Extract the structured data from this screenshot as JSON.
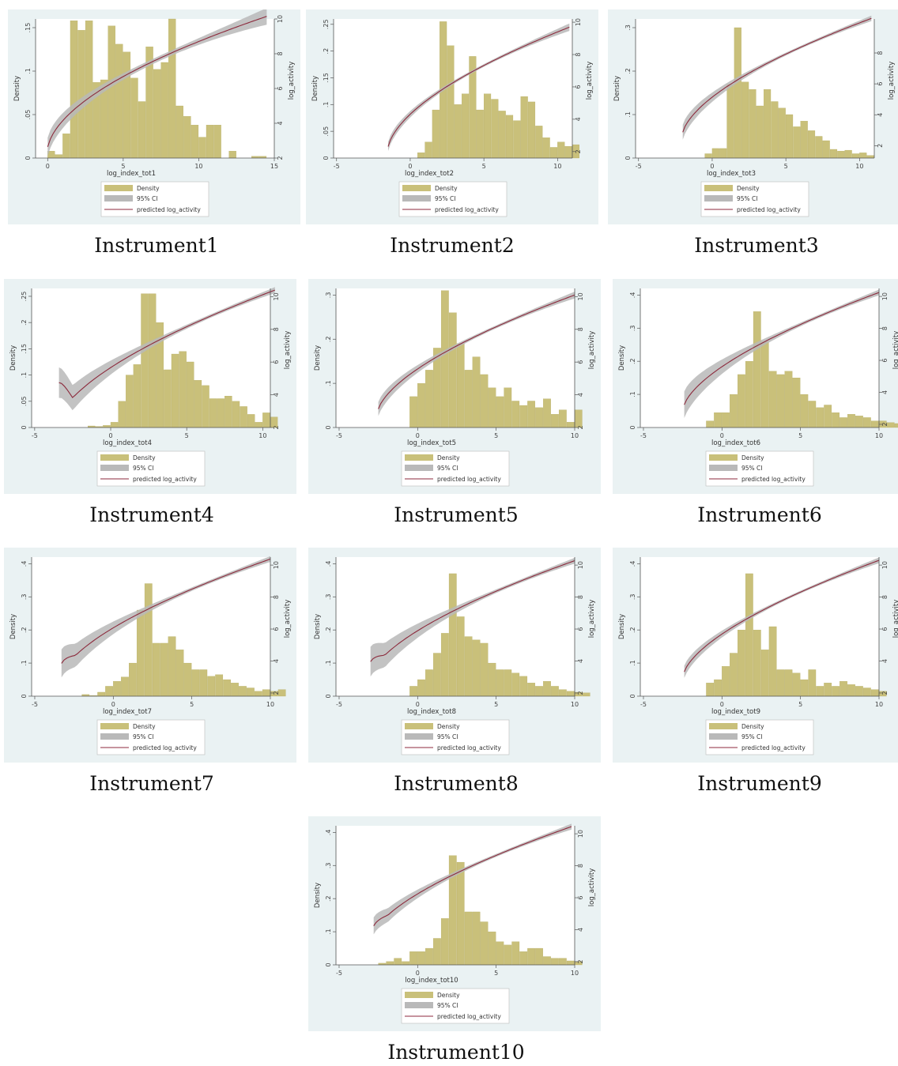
{
  "colors": {
    "bar": "#c9c07a",
    "bar_edge": "#b1a85c",
    "ci": "#b9b9b9",
    "line": "#8c2a3c",
    "panel_bg": "#eaf2f3",
    "plot_bg": "#ffffff"
  },
  "legend": {
    "density": "Density",
    "ci": "95% CI",
    "fit": "predicted log_activity"
  },
  "y2label": "log_activity",
  "ylabel": "Density",
  "chart_data": [
    {
      "type": "bar",
      "caption": "Instrument1",
      "xlabel": "log_index_tot1",
      "xlim": [
        -0.8,
        15
      ],
      "xticks": [
        0,
        5,
        10,
        15
      ],
      "xtick_labels": [
        "0",
        "5",
        "10",
        "15"
      ],
      "ylim": [
        0,
        0.16
      ],
      "yticks": [
        0,
        0.05,
        0.1,
        0.15
      ],
      "ytick_labels": [
        "0",
        ".05",
        ".1",
        ".15"
      ],
      "y2lim": [
        2,
        10
      ],
      "y2ticks": [
        2,
        4,
        6,
        8,
        10
      ],
      "y2tick_labels": [
        "2",
        "4",
        "6",
        "8",
        "10"
      ],
      "bin_start": 0,
      "bin_width": 0.5,
      "values": [
        0.008,
        0.004,
        0.028,
        0.158,
        0.147,
        0.158,
        0.087,
        0.09,
        0.152,
        0.131,
        0.122,
        0.092,
        0.065,
        0.128,
        0.102,
        0.11,
        0.16,
        0.06,
        0.048,
        0.038,
        0.024,
        0.038,
        0.038,
        0,
        0.008,
        0,
        0,
        0.002,
        0.002,
        0
      ],
      "fit": {
        "x0": 0,
        "x1": 14.5,
        "a": 2.3,
        "b": 1.8,
        "p": 0.55
      },
      "ci_start": [
        0,
        1.0
      ],
      "ci_end": [
        14.5,
        0.9
      ]
    },
    {
      "type": "bar",
      "caption": "Instrument2",
      "xlabel": "log_index_tot2",
      "xlim": [
        -5.2,
        11
      ],
      "xticks": [
        -5,
        0,
        5,
        10
      ],
      "xtick_labels": [
        "-5",
        "0",
        "5",
        "10"
      ],
      "ylim": [
        0,
        0.26
      ],
      "yticks": [
        0,
        0.05,
        0.1,
        0.15,
        0.2,
        0.25
      ],
      "ytick_labels": [
        "0",
        ".05",
        ".1",
        ".15",
        ".2",
        ".25"
      ],
      "y2lim": [
        1.6,
        10.2
      ],
      "y2ticks": [
        2,
        4,
        6,
        8,
        10
      ],
      "y2tick_labels": [
        "2",
        "4",
        "6",
        "8",
        "10"
      ],
      "bin_start": 0.5,
      "bin_width": 0.5,
      "values": [
        0.01,
        0.03,
        0.09,
        0.255,
        0.21,
        0.1,
        0.12,
        0.19,
        0.09,
        0.12,
        0.11,
        0.088,
        0.08,
        0.07,
        0.115,
        0.105,
        0.06,
        0.038,
        0.02,
        0.03,
        0.022,
        0.025
      ],
      "fit": {
        "x0": -1.5,
        "x1": 10.8,
        "a": 2.0,
        "b": 1.79,
        "p": 0.58
      },
      "ci_start": [
        -1.5,
        0.5
      ],
      "ci_end": [
        10.8,
        0.4
      ]
    },
    {
      "type": "bar",
      "caption": "Instrument3",
      "xlabel": "log_index_tot3",
      "xlim": [
        -5.2,
        11
      ],
      "xticks": [
        -5,
        0,
        5,
        10
      ],
      "xtick_labels": [
        "-5",
        "0",
        "5",
        "10"
      ],
      "ylim": [
        0,
        0.32
      ],
      "yticks": [
        0,
        0.1,
        0.2,
        0.3
      ],
      "ytick_labels": [
        "0",
        ".1",
        ".2",
        ".3"
      ],
      "y2lim": [
        1.2,
        10.2
      ],
      "y2ticks": [
        2,
        4,
        6,
        8
      ],
      "y2tick_labels": [
        "2",
        "4",
        "6",
        "8"
      ],
      "bin_start": -0.5,
      "bin_width": 0.5,
      "values": [
        0.01,
        0.022,
        0.022,
        0.17,
        0.3,
        0.175,
        0.158,
        0.12,
        0.158,
        0.13,
        0.115,
        0.1,
        0.072,
        0.085,
        0.063,
        0.05,
        0.04,
        0.02,
        0.016,
        0.018,
        0.01,
        0.012,
        0.006
      ],
      "fit": {
        "x0": -2,
        "x1": 10.8,
        "a": 2.6,
        "b": 1.65,
        "p": 0.6
      },
      "ci_start": [
        -2,
        0.9
      ],
      "ci_end": [
        10.8,
        0.3
      ]
    },
    {
      "type": "bar",
      "caption": "Instrument4",
      "xlabel": "log_index_tot4",
      "xlim": [
        -5.2,
        10.5
      ],
      "xticks": [
        -5,
        0,
        5,
        10
      ],
      "xtick_labels": [
        "-5",
        "0",
        "5",
        "10"
      ],
      "ylim": [
        0,
        0.265
      ],
      "yticks": [
        0,
        0.05,
        0.1,
        0.15,
        0.2,
        0.25
      ],
      "ytick_labels": [
        "0",
        ".05",
        ".1",
        ".15",
        ".2",
        ".25"
      ],
      "y2lim": [
        2,
        10.5
      ],
      "y2ticks": [
        2,
        4,
        6,
        8,
        10
      ],
      "y2tick_labels": [
        "2",
        "4",
        "6",
        "8",
        "10"
      ],
      "bin_start": -2.5,
      "bin_width": 0.5,
      "values": [
        0,
        0,
        0.003,
        0.002,
        0.004,
        0.01,
        0.05,
        0.1,
        0.12,
        0.255,
        0.255,
        0.2,
        0.11,
        0.14,
        0.145,
        0.125,
        0.09,
        0.08,
        0.055,
        0.055,
        0.06,
        0.05,
        0.04,
        0.025,
        0.01,
        0.028,
        0.02
      ],
      "fit": {
        "x0": -3.4,
        "x1": 10.8,
        "a": 2.3,
        "b": 1.56,
        "p": 0.62,
        "dip": 4.0
      },
      "ci_start": [
        -3.4,
        1.8
      ],
      "ci_end": [
        10.8,
        0.3
      ]
    },
    {
      "type": "bar",
      "caption": "Instrument5",
      "xlabel": "log_index_tot5",
      "xlim": [
        -5.2,
        10
      ],
      "xticks": [
        -5,
        0,
        5,
        10
      ],
      "xtick_labels": [
        "-5",
        "0",
        "5",
        "10"
      ],
      "ylim": [
        0,
        0.315
      ],
      "yticks": [
        0,
        0.1,
        0.2,
        0.3
      ],
      "ytick_labels": [
        "0",
        ".1",
        ".2",
        ".3"
      ],
      "y2lim": [
        2,
        10.5
      ],
      "y2ticks": [
        2,
        4,
        6,
        8,
        10
      ],
      "y2tick_labels": [
        "2",
        "4",
        "6",
        "8",
        "10"
      ],
      "bin_start": -0.5,
      "bin_width": 0.5,
      "values": [
        0.07,
        0.1,
        0.13,
        0.18,
        0.31,
        0.26,
        0.19,
        0.13,
        0.16,
        0.12,
        0.09,
        0.07,
        0.09,
        0.06,
        0.05,
        0.06,
        0.045,
        0.065,
        0.03,
        0.04,
        0.012,
        0.04
      ],
      "fit": {
        "x0": -2.5,
        "x1": 10,
        "a": 2.9,
        "b": 1.5,
        "p": 0.62
      },
      "ci_start": [
        -2.5,
        0.8
      ],
      "ci_end": [
        10,
        0.35
      ]
    },
    {
      "type": "bar",
      "caption": "Instrument6",
      "xlabel": "log_index_tot6",
      "xlim": [
        -5.2,
        10
      ],
      "xticks": [
        -5,
        0,
        5,
        10
      ],
      "xtick_labels": [
        "-5",
        "0",
        "5",
        "10"
      ],
      "ylim": [
        0,
        0.42
      ],
      "yticks": [
        0,
        0.1,
        0.2,
        0.3,
        0.4
      ],
      "ytick_labels": [
        "0",
        ".1",
        ".2",
        ".3",
        ".4"
      ],
      "y2lim": [
        1.8,
        10.5
      ],
      "y2ticks": [
        2,
        4,
        6,
        8,
        10
      ],
      "y2tick_labels": [
        "2",
        "4",
        "6",
        "8",
        "10"
      ],
      "bin_start": -1,
      "bin_width": 0.5,
      "values": [
        0.02,
        0.045,
        0.045,
        0.1,
        0.16,
        0.2,
        0.35,
        0.26,
        0.17,
        0.16,
        0.17,
        0.15,
        0.1,
        0.08,
        0.06,
        0.068,
        0.045,
        0.03,
        0.04,
        0.035,
        0.03,
        0.02,
        0.02,
        0.015,
        0.012,
        0.022
      ],
      "fit": {
        "x0": -2.4,
        "x1": 10,
        "a": 3.0,
        "b": 1.48,
        "p": 0.63
      },
      "ci_start": [
        -2.4,
        1.6
      ],
      "ci_end": [
        10,
        0.3
      ]
    },
    {
      "type": "bar",
      "caption": "Instrument7",
      "xlabel": "log_index_tot7",
      "xlim": [
        -5.2,
        10
      ],
      "xticks": [
        -5,
        0,
        5,
        10
      ],
      "xtick_labels": [
        "-5",
        "0",
        "5",
        "10"
      ],
      "ylim": [
        0,
        0.42
      ],
      "yticks": [
        0,
        0.1,
        0.2,
        0.3,
        0.4
      ],
      "ytick_labels": [
        "0",
        ".1",
        ".2",
        ".3",
        ".4"
      ],
      "y2lim": [
        1.8,
        10.5
      ],
      "y2ticks": [
        2,
        4,
        6,
        8,
        10
      ],
      "y2tick_labels": [
        "2",
        "4",
        "6",
        "8",
        "10"
      ],
      "bin_start": -2,
      "bin_width": 0.5,
      "values": [
        0.005,
        0.002,
        0.012,
        0.03,
        0.045,
        0.058,
        0.1,
        0.26,
        0.34,
        0.16,
        0.16,
        0.18,
        0.14,
        0.1,
        0.08,
        0.08,
        0.06,
        0.065,
        0.05,
        0.04,
        0.03,
        0.025,
        0.015,
        0.02,
        0.015,
        0.02
      ],
      "fit": {
        "x0": -3.3,
        "x1": 10,
        "a": 2.9,
        "b": 1.5,
        "p": 0.62,
        "dip": 1.3
      },
      "ci_start": [
        -3.3,
        1.7
      ],
      "ci_end": [
        10,
        0.3
      ]
    },
    {
      "type": "bar",
      "caption": "Instrument8",
      "xlabel": "log_index_tot8",
      "xlim": [
        -5.2,
        10
      ],
      "xticks": [
        -5,
        0,
        5,
        10
      ],
      "xtick_labels": [
        "-5",
        "0",
        "5",
        "10"
      ],
      "ylim": [
        0,
        0.42
      ],
      "yticks": [
        0,
        0.1,
        0.2,
        0.3,
        0.4
      ],
      "ytick_labels": [
        "0",
        ".1",
        ".2",
        ".3",
        ".4"
      ],
      "y2lim": [
        1.8,
        10.5
      ],
      "y2ticks": [
        2,
        4,
        6,
        8,
        10
      ],
      "y2tick_labels": [
        "2",
        "4",
        "6",
        "8",
        "10"
      ],
      "bin_start": -0.5,
      "bin_width": 0.5,
      "values": [
        0.03,
        0.05,
        0.08,
        0.13,
        0.19,
        0.37,
        0.24,
        0.18,
        0.17,
        0.16,
        0.1,
        0.08,
        0.08,
        0.07,
        0.06,
        0.04,
        0.03,
        0.045,
        0.03,
        0.02,
        0.015,
        0.012,
        0.01
      ],
      "fit": {
        "x0": -3.0,
        "x1": 10,
        "a": 2.9,
        "b": 1.5,
        "p": 0.62,
        "dip": 1.5
      },
      "ci_start": [
        -3.0,
        1.8
      ],
      "ci_end": [
        10,
        0.3
      ]
    },
    {
      "type": "bar",
      "caption": "Instrument9",
      "xlabel": "log_index_tot9",
      "xlim": [
        -5.2,
        10
      ],
      "xticks": [
        -5,
        0,
        5,
        10
      ],
      "xtick_labels": [
        "-5",
        "0",
        "5",
        "10"
      ],
      "ylim": [
        0,
        0.42
      ],
      "yticks": [
        0,
        0.1,
        0.2,
        0.3,
        0.4
      ],
      "ytick_labels": [
        "0",
        ".1",
        ".2",
        ".3",
        ".4"
      ],
      "y2lim": [
        1.8,
        10.5
      ],
      "y2ticks": [
        2,
        4,
        6,
        8,
        10
      ],
      "y2tick_labels": [
        "2",
        "4",
        "6",
        "8",
        "10"
      ],
      "bin_start": -1,
      "bin_width": 0.5,
      "values": [
        0.04,
        0.05,
        0.09,
        0.13,
        0.2,
        0.37,
        0.2,
        0.14,
        0.21,
        0.08,
        0.08,
        0.07,
        0.05,
        0.08,
        0.03,
        0.04,
        0.03,
        0.045,
        0.035,
        0.03,
        0.025,
        0.02,
        0.015
      ],
      "fit": {
        "x0": -2.4,
        "x1": 10,
        "a": 3.1,
        "b": 1.47,
        "p": 0.63
      },
      "ci_start": [
        -2.4,
        0.7
      ],
      "ci_end": [
        10,
        0.3
      ]
    },
    {
      "type": "bar",
      "caption": "Instrument10",
      "xlabel": "log_index_tot10",
      "xlim": [
        -5.2,
        10
      ],
      "xticks": [
        -5,
        0,
        5,
        10
      ],
      "xtick_labels": [
        "-5",
        "0",
        "5",
        "10"
      ],
      "ylim": [
        0,
        0.42
      ],
      "yticks": [
        0,
        0.1,
        0.2,
        0.3,
        0.4
      ],
      "ytick_labels": [
        "0",
        ".1",
        ".2",
        ".3",
        ".4"
      ],
      "y2lim": [
        1.8,
        10.5
      ],
      "y2ticks": [
        2,
        4,
        6,
        8,
        10
      ],
      "y2tick_labels": [
        "2",
        "4",
        "6",
        "8",
        "10"
      ],
      "bin_start": -2.5,
      "bin_width": 0.5,
      "values": [
        0.005,
        0.01,
        0.02,
        0.01,
        0.04,
        0.04,
        0.05,
        0.08,
        0.14,
        0.33,
        0.31,
        0.16,
        0.16,
        0.13,
        0.1,
        0.07,
        0.06,
        0.07,
        0.04,
        0.05,
        0.05,
        0.025,
        0.02,
        0.02,
        0.012,
        0.01
      ],
      "fit": {
        "x0": -2.8,
        "x1": 9.8,
        "a": 3.6,
        "b": 1.35,
        "p": 0.64,
        "dip": 0.8
      },
      "ci_start": [
        -2.8,
        1.0
      ],
      "ci_end": [
        9.8,
        0.3
      ]
    }
  ]
}
